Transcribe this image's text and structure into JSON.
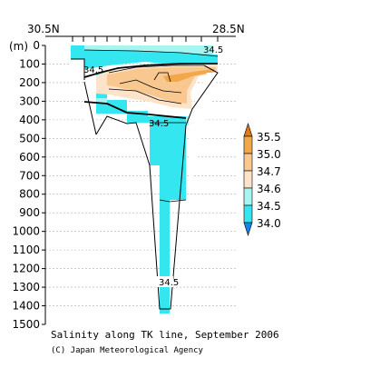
{
  "chart_data": {
    "type": "heatmap",
    "caption": "Salinity along TK line, September 2006",
    "credit": "(C) Japan Meteorological Agency",
    "x_left_label": "30.5N",
    "x_right_label": "28.5N",
    "y_unit_label": "(m)",
    "y_range": [
      0,
      1500
    ],
    "y_reversed": true,
    "y_ticks": [
      0,
      100,
      200,
      300,
      400,
      500,
      600,
      700,
      800,
      900,
      1000,
      1100,
      1200,
      1300,
      1400,
      1500
    ],
    "y_tick_labels": [
      "0",
      "100",
      "200",
      "300",
      "400",
      "500",
      "600",
      "700",
      "800",
      "900",
      "1000",
      "1100",
      "1200",
      "1300",
      "1400",
      "1500"
    ],
    "grid": true,
    "colorbar": {
      "levels": [
        "34.0",
        "34.5",
        "34.6",
        "34.7",
        "35.0",
        "35.5"
      ],
      "colors": [
        "#1a82e8",
        "#33e6f0",
        "#a8f4f0",
        "#fde4c8",
        "#f8c890",
        "#f3a848",
        "#e07820"
      ]
    },
    "contour_labels": [
      {
        "text": "34.5",
        "depth": 120
      },
      {
        "text": "34.5",
        "depth": 410
      },
      {
        "text": "34.5",
        "depth": 1290
      },
      {
        "text": "34.5",
        "depth": 30
      }
    ]
  }
}
